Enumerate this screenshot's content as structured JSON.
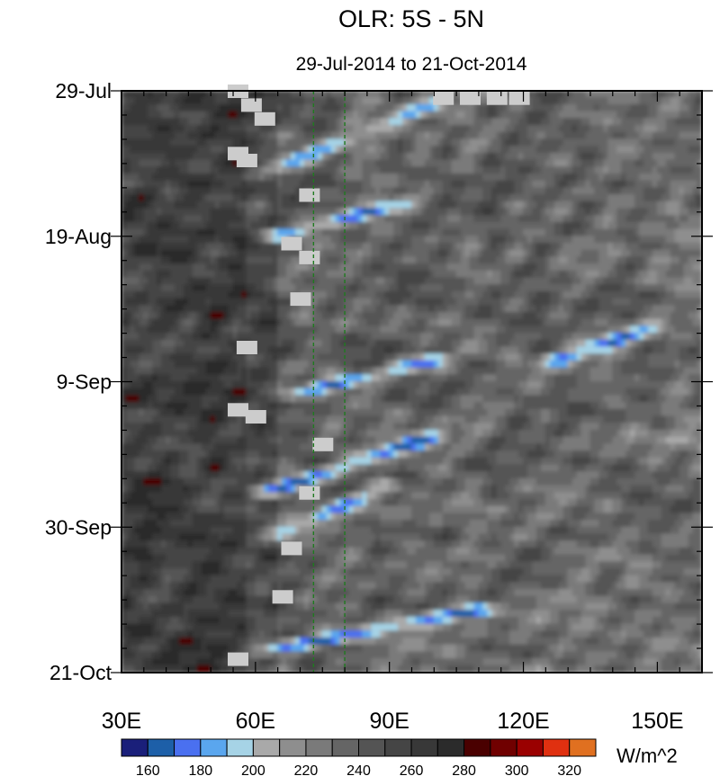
{
  "chart_data": {
    "type": "heatmap",
    "title": "OLR: 5S - 5N",
    "subtitle": "29-Jul-2014 to 21-Oct-2014",
    "x_axis": {
      "ticks": [
        30,
        60,
        90,
        120,
        150
      ],
      "tick_labels": [
        "30E",
        "60E",
        "90E",
        "120E",
        "150E"
      ],
      "range": [
        30,
        160
      ]
    },
    "y_axis": {
      "ticks": [
        "2014-07-29",
        "2014-08-19",
        "2014-09-09",
        "2014-09-30",
        "2014-10-21"
      ],
      "tick_labels": [
        "29-Jul",
        "19-Aug",
        "9-Sep",
        "30-Sep",
        "21-Oct"
      ],
      "range": [
        "2014-07-29",
        "2014-10-21"
      ],
      "direction": "time increases downward"
    },
    "reference_lines_lon": [
      73,
      80
    ],
    "colorbar": {
      "unit_label": "W/m^2",
      "levels": [
        160,
        170,
        180,
        190,
        200,
        210,
        220,
        230,
        240,
        250,
        260,
        270,
        280,
        290,
        300,
        310,
        320
      ],
      "tick_labels": [
        "160",
        "180",
        "200",
        "220",
        "240",
        "260",
        "280",
        "300",
        "320"
      ],
      "colors": [
        "#1a1f7a",
        "#1d5fa8",
        "#4a70f0",
        "#5aa6ee",
        "#a6d3e6",
        "#a9a9a9",
        "#8e8e8e",
        "#7a7a7a",
        "#656565",
        "#545454",
        "#454545",
        "#383838",
        "#2b2b2b",
        "#4a0000",
        "#700000",
        "#9a0000",
        "#e03010",
        "#e07020"
      ]
    },
    "missing_color": "#cccccc",
    "convective_bands": [
      {
        "start_lon": 62,
        "start_date": "2014-08-10",
        "end_lon": 100,
        "end_date": "2014-07-31",
        "min_olr": 180
      },
      {
        "start_lon": 65,
        "start_date": "2014-08-19",
        "end_lon": 95,
        "end_date": "2014-08-14",
        "min_olr": 165
      },
      {
        "start_lon": 68,
        "start_date": "2014-09-11",
        "end_lon": 100,
        "end_date": "2014-09-06",
        "min_olr": 165
      },
      {
        "start_lon": 63,
        "start_date": "2014-09-25",
        "end_lon": 100,
        "end_date": "2014-09-17",
        "min_olr": 160
      },
      {
        "start_lon": 66,
        "start_date": "2014-10-01",
        "end_lon": 90,
        "end_date": "2014-09-24",
        "min_olr": 170
      },
      {
        "start_lon": 62,
        "start_date": "2014-10-18",
        "end_lon": 110,
        "end_date": "2014-10-12",
        "min_olr": 160
      },
      {
        "start_lon": 128,
        "start_date": "2014-09-06",
        "end_lon": 150,
        "end_date": "2014-09-01",
        "min_olr": 160
      }
    ],
    "missing_data_blocks": [
      {
        "lon": 56,
        "date": "2014-07-29"
      },
      {
        "lon": 59,
        "date": "2014-07-31"
      },
      {
        "lon": 62,
        "date": "2014-08-02"
      },
      {
        "lon": 56,
        "date": "2014-08-07"
      },
      {
        "lon": 58,
        "date": "2014-08-08"
      },
      {
        "lon": 72,
        "date": "2014-08-13"
      },
      {
        "lon": 68,
        "date": "2014-08-20"
      },
      {
        "lon": 72,
        "date": "2014-08-22"
      },
      {
        "lon": 70,
        "date": "2014-08-28"
      },
      {
        "lon": 58,
        "date": "2014-09-04"
      },
      {
        "lon": 56,
        "date": "2014-09-13"
      },
      {
        "lon": 60,
        "date": "2014-09-14"
      },
      {
        "lon": 75,
        "date": "2014-09-18"
      },
      {
        "lon": 72,
        "date": "2014-09-25"
      },
      {
        "lon": 68,
        "date": "2014-10-03"
      },
      {
        "lon": 66,
        "date": "2014-10-10"
      },
      {
        "lon": 56,
        "date": "2014-10-19"
      },
      {
        "lon": 102,
        "date": "2014-07-30"
      },
      {
        "lon": 108,
        "date": "2014-07-30"
      },
      {
        "lon": 114,
        "date": "2014-07-30"
      },
      {
        "lon": 119,
        "date": "2014-07-30"
      }
    ]
  }
}
